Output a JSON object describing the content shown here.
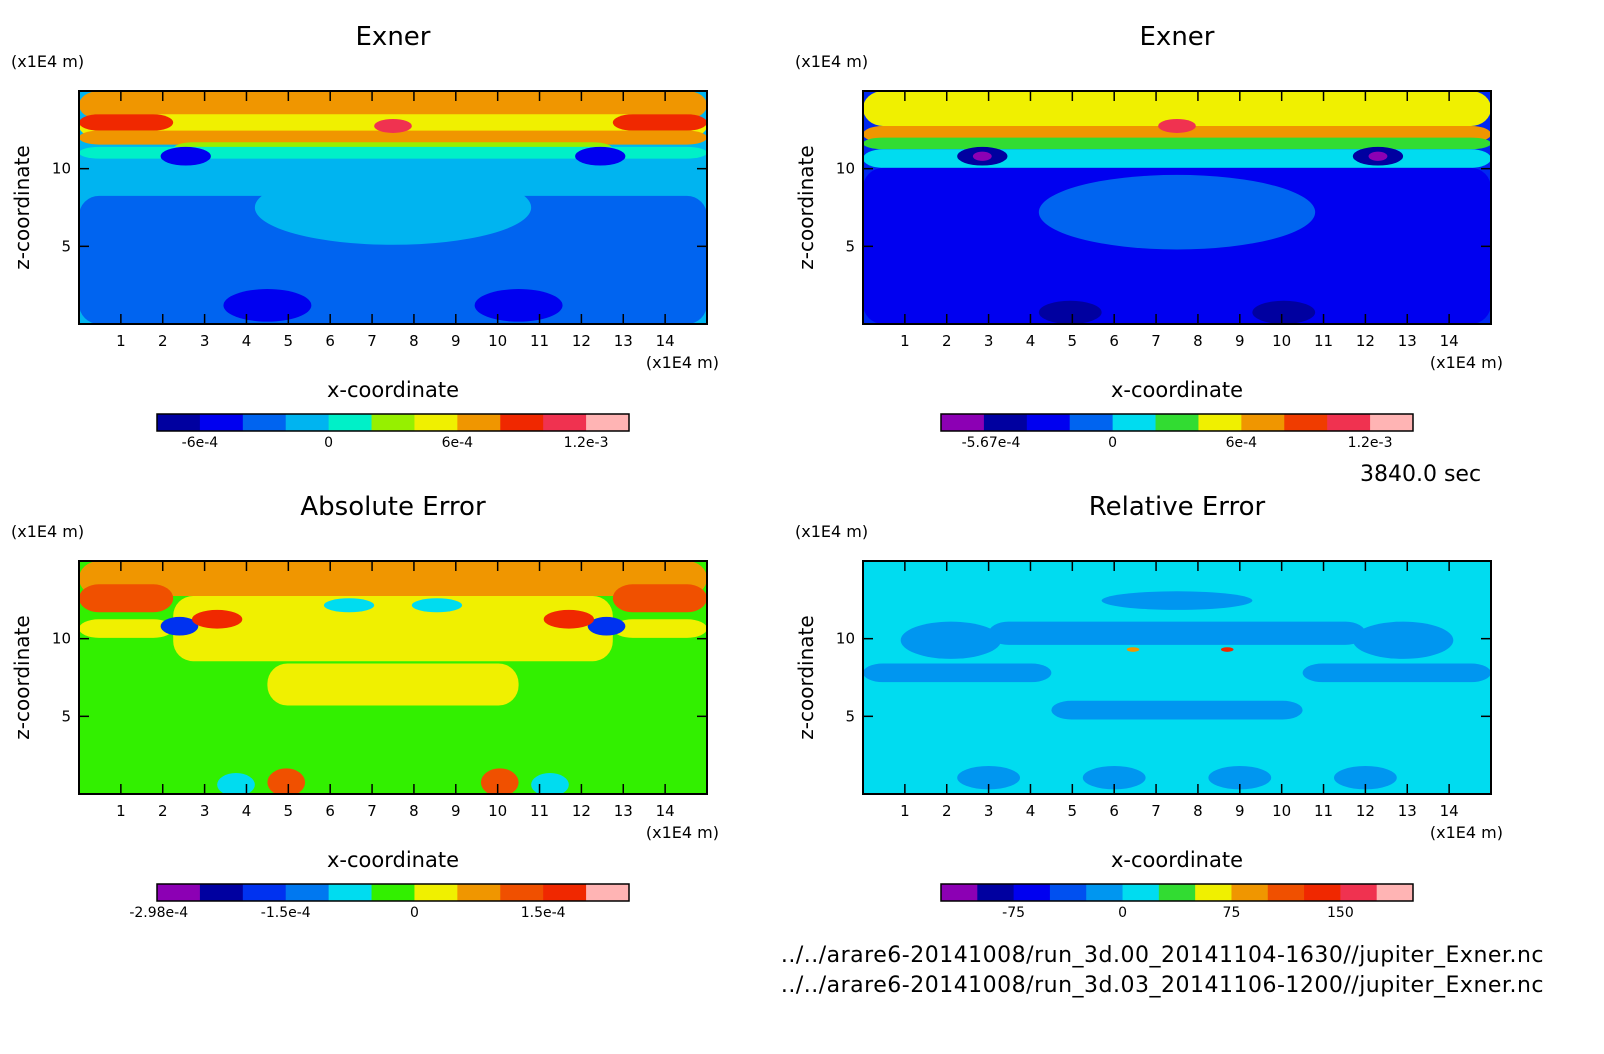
{
  "time_label": "3840.0 sec",
  "files": [
    "../../arare6-20141008/run_3d.00_20141104-1630//jupiter_Exner.nc",
    "../../arare6-20141008/run_3d.03_20141106-1200//jupiter_Exner.nc"
  ],
  "chart_data": [
    {
      "type": "heatmap",
      "title": "Exner",
      "xlabel": "x-coordinate",
      "ylabel": "z-coordinate",
      "x_unit": "(x1E4 m)",
      "y_unit": "(x1E4 m)",
      "xlim": [
        0,
        15
      ],
      "ylim": [
        0,
        15
      ],
      "x_ticks": [
        "1",
        "2",
        "3",
        "4",
        "5",
        "6",
        "7",
        "8",
        "9",
        "10",
        "11",
        "12",
        "13",
        "14"
      ],
      "y_ticks": [
        "5",
        "10"
      ],
      "colorbar": {
        "colors": [
          "#0000a0",
          "#0000f0",
          "#0064f0",
          "#00b4f0",
          "#00f0c8",
          "#96f000",
          "#f0f000",
          "#f09600",
          "#f02800",
          "#f03250",
          "#ffb4b4"
        ],
        "tick_labels": [
          "-6e-4",
          "0",
          "6e-4",
          "1.2e-3"
        ],
        "tick_values": [
          -0.0006,
          0,
          0.0006,
          0.0012
        ],
        "range": [
          -0.0008,
          0.0014
        ]
      },
      "fill": "#00b4f0"
    },
    {
      "type": "heatmap",
      "title": "Exner",
      "xlabel": "x-coordinate",
      "ylabel": "z-coordinate",
      "x_unit": "(x1E4 m)",
      "y_unit": "(x1E4 m)",
      "xlim": [
        0,
        15
      ],
      "ylim": [
        0,
        15
      ],
      "x_ticks": [
        "1",
        "2",
        "3",
        "4",
        "5",
        "6",
        "7",
        "8",
        "9",
        "10",
        "11",
        "12",
        "13",
        "14"
      ],
      "y_ticks": [
        "5",
        "10"
      ],
      "colorbar": {
        "colors": [
          "#8c00b4",
          "#0000a0",
          "#0000f0",
          "#0064f0",
          "#00dcf0",
          "#32dc32",
          "#f0f000",
          "#f09600",
          "#f03c00",
          "#f03250",
          "#ffb4b4"
        ],
        "tick_labels": [
          "-5.67e-4",
          "0",
          "6e-4",
          "1.2e-3"
        ],
        "tick_values": [
          -0.000567,
          0,
          0.0006,
          0.0012
        ],
        "range": [
          -0.0008,
          0.0014
        ]
      },
      "fill": "#0028f0"
    },
    {
      "type": "heatmap",
      "title": "Absolute Error",
      "xlabel": "x-coordinate",
      "ylabel": "z-coordinate",
      "x_unit": "(x1E4 m)",
      "y_unit": "(x1E4 m)",
      "xlim": [
        0,
        15
      ],
      "ylim": [
        0,
        15
      ],
      "x_ticks": [
        "1",
        "2",
        "3",
        "4",
        "5",
        "6",
        "7",
        "8",
        "9",
        "10",
        "11",
        "12",
        "13",
        "14"
      ],
      "y_ticks": [
        "5",
        "10"
      ],
      "colorbar": {
        "colors": [
          "#8c00b4",
          "#0000a0",
          "#0032f0",
          "#0078f0",
          "#00dcf0",
          "#32f000",
          "#f0f000",
          "#f09600",
          "#f05000",
          "#f02800",
          "#ffb4b4"
        ],
        "tick_labels": [
          "-2.98e-4",
          "-1.5e-4",
          "0",
          "1.5e-4"
        ],
        "tick_values": [
          -0.000298,
          -0.00015,
          0,
          0.00015
        ],
        "range": [
          -0.0003,
          0.00025
        ]
      },
      "fill": "#32f000"
    },
    {
      "type": "heatmap",
      "title": "Relative Error",
      "xlabel": "x-coordinate",
      "ylabel": "z-coordinate",
      "x_unit": "(x1E4 m)",
      "y_unit": "(x1E4 m)",
      "xlim": [
        0,
        15
      ],
      "ylim": [
        0,
        15
      ],
      "x_ticks": [
        "1",
        "2",
        "3",
        "4",
        "5",
        "6",
        "7",
        "8",
        "9",
        "10",
        "11",
        "12",
        "13",
        "14"
      ],
      "y_ticks": [
        "5",
        "10"
      ],
      "colorbar": {
        "colors": [
          "#8c00b4",
          "#0000a0",
          "#0000f0",
          "#0050f0",
          "#0096f0",
          "#00dcf0",
          "#32dc32",
          "#f0f000",
          "#f09600",
          "#f05000",
          "#f02800",
          "#f03250",
          "#ffb4b4"
        ],
        "tick_labels": [
          "-75",
          "0",
          "75",
          "150"
        ],
        "tick_values": [
          -75,
          0,
          75,
          150
        ],
        "range": [
          -125,
          200
        ]
      },
      "fill": "#00dcf0"
    }
  ]
}
